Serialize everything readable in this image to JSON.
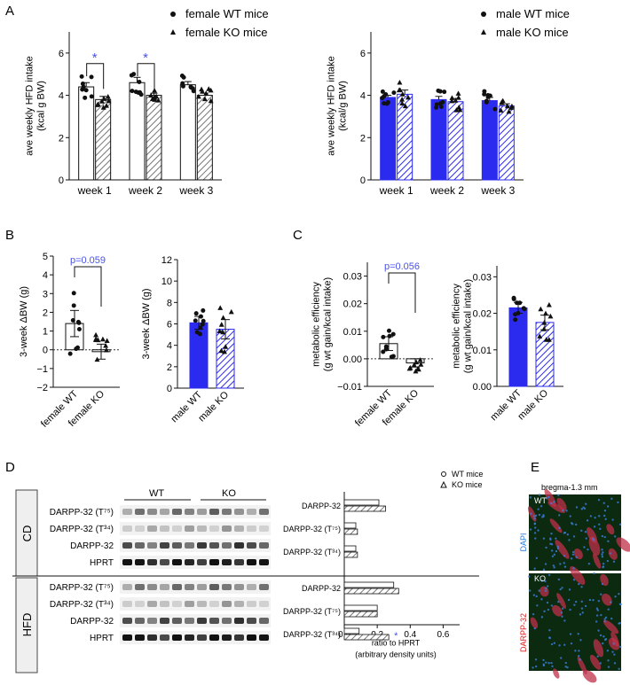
{
  "panel_labels": {
    "a": "A",
    "b": "B",
    "c": "C",
    "d": "D",
    "e": "E"
  },
  "colors": {
    "blue": "#2b2bf0",
    "female": "#ffffff",
    "hatch": "#888888",
    "sig": "#4a52e8",
    "dark": "#111111"
  },
  "chart_data": [
    {
      "id": "A-female",
      "type": "bar",
      "ylabel": "ave weekly HFD intake\n(kcal g BW)",
      "categories": [
        "week 1",
        "week 2",
        "week 3"
      ],
      "ylim": [
        0,
        7
      ],
      "yticks": [
        "0",
        "2",
        "4",
        "6"
      ],
      "series": [
        {
          "name": "female WT mice",
          "values": [
            4.4,
            4.6,
            4.5
          ],
          "sem": [
            0.2,
            0.25,
            0.15
          ]
        },
        {
          "name": "female KO mice",
          "values": [
            3.8,
            4.0,
            4.0
          ],
          "sem": [
            0.15,
            0.1,
            0.1
          ]
        }
      ],
      "legend": [
        "female WT mice",
        "female KO mice"
      ],
      "annotations": [
        {
          "text": "*",
          "between": [
            0,
            1
          ],
          "category": 0
        },
        {
          "text": "*",
          "between": [
            0,
            1
          ],
          "category": 1
        }
      ]
    },
    {
      "id": "A-male",
      "type": "bar",
      "ylabel": "ave weekly HFD intake\n(kcal/g BW)",
      "categories": [
        "week 1",
        "week 2",
        "week 3"
      ],
      "ylim": [
        0,
        7
      ],
      "yticks": [
        "0",
        "2",
        "4",
        "6"
      ],
      "series": [
        {
          "name": "male WT mice",
          "values": [
            3.9,
            3.8,
            3.75
          ],
          "sem": [
            0.1,
            0.15,
            0.15
          ]
        },
        {
          "name": "male KO mice",
          "values": [
            4.05,
            3.7,
            3.5
          ],
          "sem": [
            0.2,
            0.15,
            0.1
          ]
        }
      ],
      "legend": [
        "male WT mice",
        "male KO mice"
      ]
    },
    {
      "id": "B-female",
      "type": "bar",
      "ylabel": "3-week ΔBW (g)",
      "categories": [
        "female WT",
        "female KO"
      ],
      "ylim": [
        -2,
        5
      ],
      "yticks": [
        "−2",
        "−1",
        "0",
        "1",
        "2",
        "3",
        "4",
        "5"
      ],
      "values": [
        1.4,
        -0.1
      ],
      "sem": [
        0.7,
        0.4
      ],
      "annotations": [
        {
          "text": "p=0.059"
        }
      ]
    },
    {
      "id": "B-male",
      "type": "bar",
      "ylabel": "3-week ΔBW (g)",
      "categories": [
        "male WT",
        "male KO"
      ],
      "ylim": [
        0,
        12
      ],
      "yticks": [
        "0",
        "2",
        "4",
        "6",
        "8",
        "10",
        "12"
      ],
      "values": [
        6.1,
        5.5
      ],
      "sem": [
        0.6,
        0.9
      ]
    },
    {
      "id": "C-female",
      "type": "bar",
      "ylabel": "metabolic efficiency\n(g wt gain/kcal intake)",
      "categories": [
        "female WT",
        "female KO"
      ],
      "ylim": [
        -0.01,
        0.035
      ],
      "yticks": [
        "−0.01",
        "0.00",
        "0.01",
        "0.02",
        "0.03"
      ],
      "values": [
        0.0055,
        -0.0015
      ],
      "sem": [
        0.0025,
        0.0015
      ],
      "annotations": [
        {
          "text": "p=0.056"
        }
      ]
    },
    {
      "id": "C-male",
      "type": "bar",
      "ylabel": "metabolic efficiency\n(g wt gain/kcal intake)",
      "categories": [
        "male WT",
        "male KO"
      ],
      "ylim": [
        0,
        0.033
      ],
      "yticks": [
        "0.00",
        "0.01",
        "0.02",
        "0.03"
      ],
      "values": [
        0.0215,
        0.0175
      ],
      "sem": [
        0.0015,
        0.002
      ]
    },
    {
      "id": "D-quant",
      "type": "bar",
      "xlabel": "ratio to HPRT\n(arbitrary density units)",
      "xlim": [
        0,
        0.7
      ],
      "xticks": [
        "0.0",
        "0.2",
        "0.4",
        "0.6"
      ],
      "legend": [
        "WT mice",
        "KO mice"
      ],
      "groups": [
        {
          "condition": "CD",
          "categories": [
            "DARPP-32",
            "DARPP-32 (T⁷⁵)",
            "DARPP-32 (T³⁴)"
          ],
          "series": [
            {
              "name": "WT mice",
              "values": [
                0.21,
                0.07,
                0.07
              ]
            },
            {
              "name": "KO mice",
              "values": [
                0.25,
                0.08,
                0.08
              ]
            }
          ]
        },
        {
          "condition": "HFD",
          "categories": [
            "DARPP-32",
            "DARPP-32 (T⁷⁵)",
            "DARPP-32 (T³⁴)"
          ],
          "series": [
            {
              "name": "WT mice",
              "values": [
                0.3,
                0.2,
                0.09
              ]
            },
            {
              "name": "KO mice",
              "values": [
                0.33,
                0.2,
                0.27
              ]
            }
          ],
          "annotations": [
            {
              "text": "*",
              "category": "DARPP-32 (T³⁴)"
            }
          ]
        }
      ]
    }
  ],
  "blot": {
    "header_wt": "WT",
    "header_ko": "KO",
    "cd": {
      "label": "CD",
      "rows": [
        "DARPP-32 (T⁷⁵)",
        "DARPP-32 (T³⁴)",
        "DARPP-32",
        "HPRT"
      ]
    },
    "hfd": {
      "label": "HFD",
      "rows": [
        "DARPP-32 (T⁷⁵)",
        "DARPP-32 (T³⁴)",
        "DARPP-32",
        "HPRT"
      ]
    }
  },
  "micrograph": {
    "title": "bregma-1.3 mm",
    "top_label": "WT",
    "bottom_label": "KO",
    "side_red": "DARPP-32",
    "side_blue": "DAPI"
  }
}
